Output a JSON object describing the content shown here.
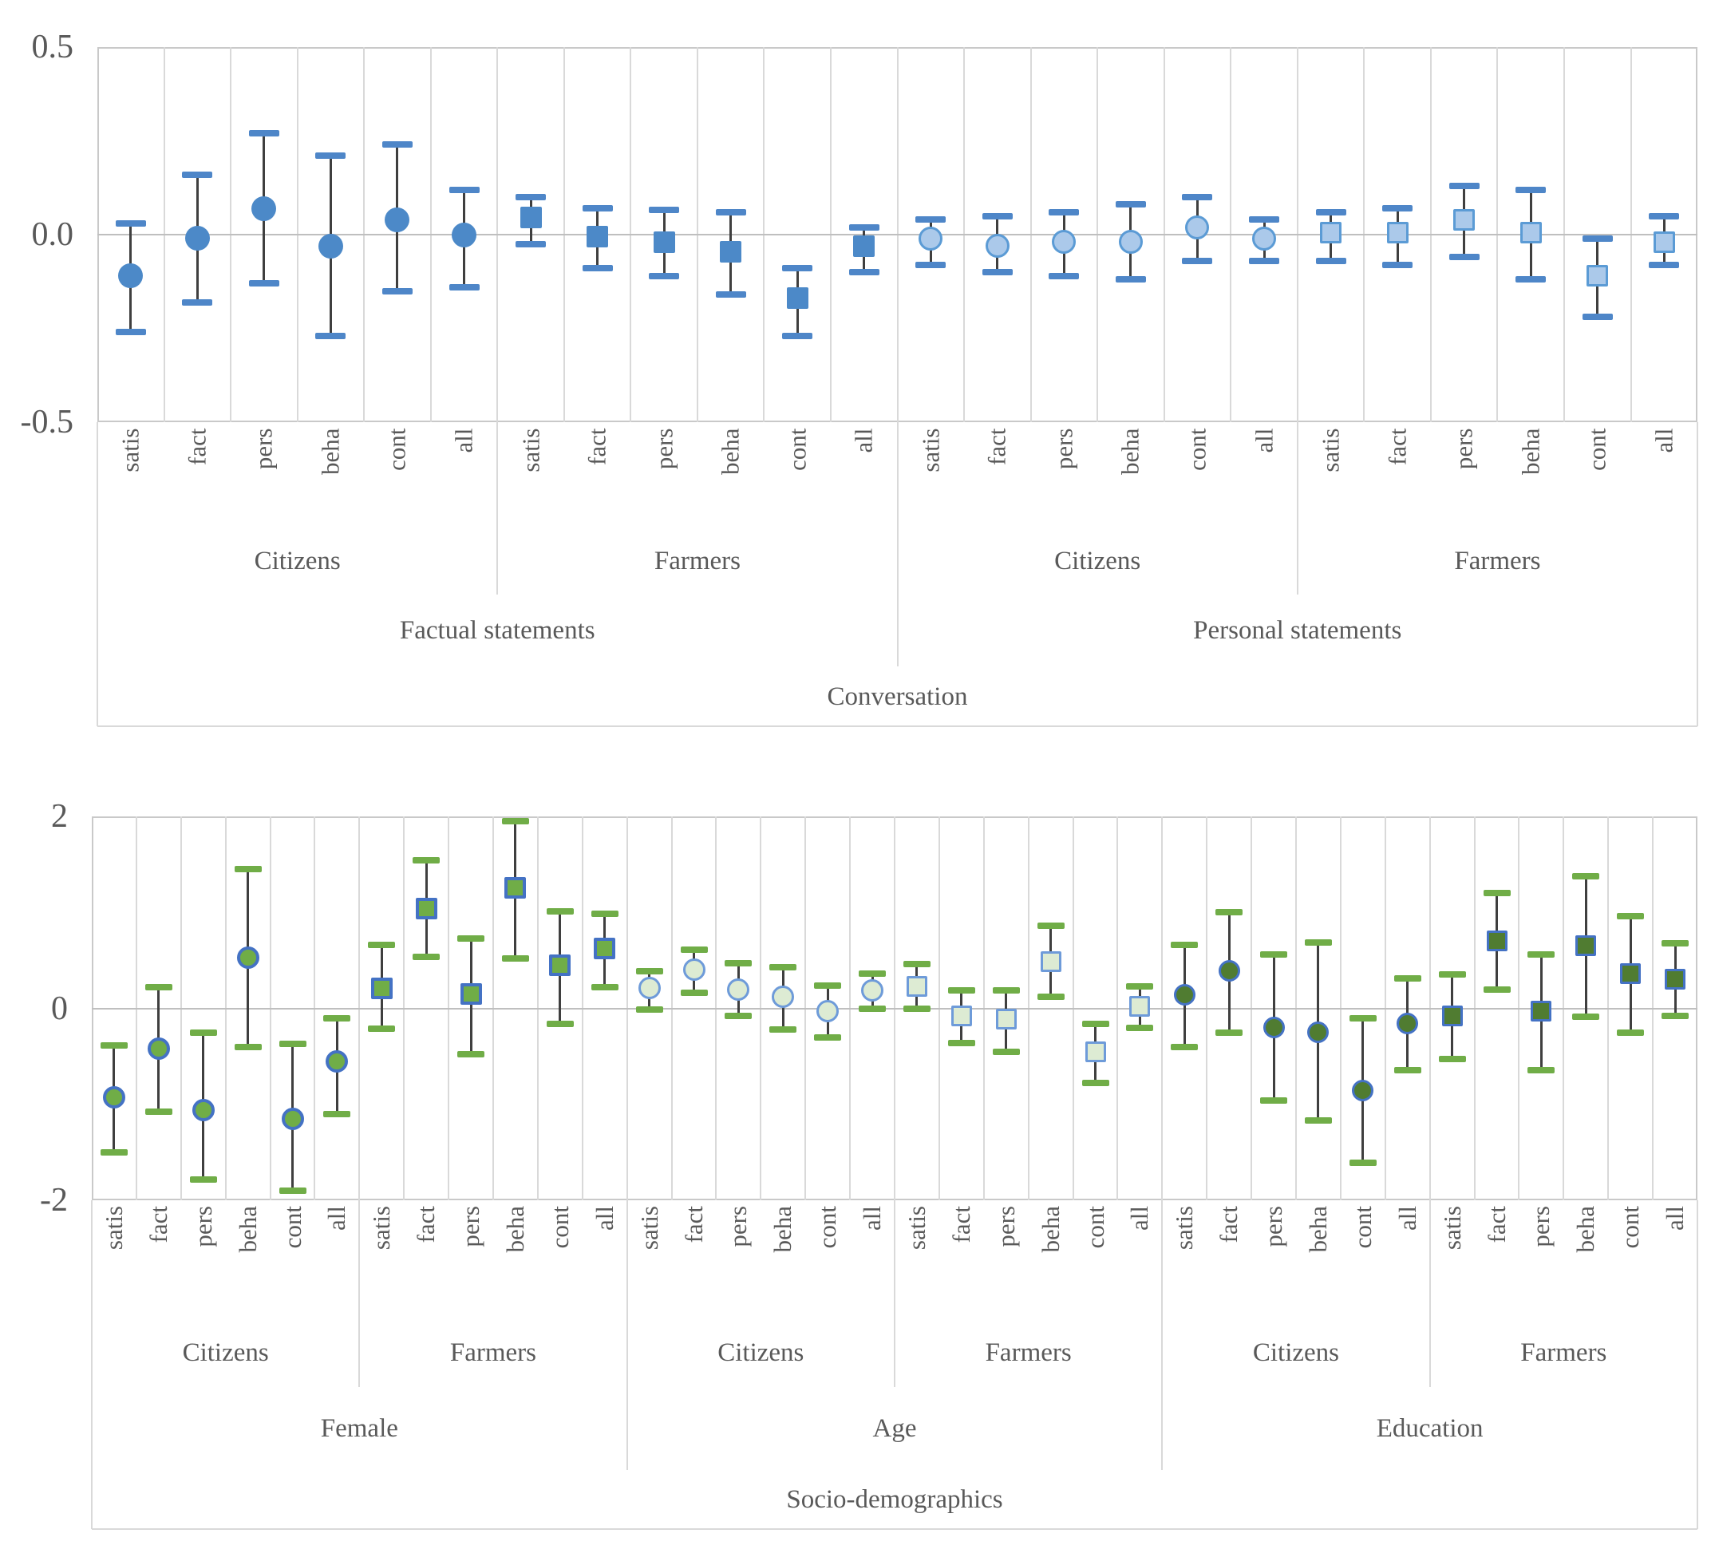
{
  "figure": {
    "background": "#FFFFFF"
  },
  "colors": {
    "text": "#595959",
    "gridline": "#D9D9D9",
    "zero_line": "#BFBFBF",
    "plot_border": "#C9C9C9",
    "error_line": "#3F3F3F"
  },
  "marker_styles": {
    "factual": {
      "fill": "#4C89C8",
      "border": "#4C89C8",
      "cap": "#4E86C8"
    },
    "personal": {
      "fill": "#ABC9EA",
      "border": "#5B9BD5",
      "cap": "#4E86C8"
    },
    "female": {
      "fill": "#70AD47",
      "border": "#4472C4",
      "cap": "#70AD47"
    },
    "age": {
      "fill": "#DDEBD3",
      "border": "#6E9BD9",
      "cap": "#70AD47"
    },
    "education": {
      "fill": "#507C31",
      "border": "#4472C4",
      "cap": "#70AD47"
    }
  },
  "chart_data": [
    {
      "type": "errorbar",
      "name": "conversation",
      "axis_title": "Conversation",
      "grid": true,
      "legend": false,
      "marker_shape_meaning": {
        "circle": "Citizens",
        "square": "Farmers"
      },
      "y_axis": {
        "min": -0.5,
        "max": 0.5,
        "ticks": [
          {
            "label": "0.5",
            "value": 0.5
          },
          {
            "label": "0.0",
            "value": 0.0
          },
          {
            "label": "-0.5",
            "value": -0.5
          }
        ]
      },
      "group_labels_mid": [
        {
          "label": "Citizens",
          "span": 6
        },
        {
          "label": "Farmers",
          "span": 6
        },
        {
          "label": "Citizens",
          "span": 6
        },
        {
          "label": "Farmers",
          "span": 6
        }
      ],
      "group_labels_outer": [
        {
          "label": "Factual statements",
          "span": 12
        },
        {
          "label": "Personal statements",
          "span": 12
        }
      ],
      "points": [
        {
          "c": "satis",
          "m": "circle",
          "s": "factual",
          "v": -0.11,
          "lo": -0.26,
          "hi": 0.03
        },
        {
          "c": "fact",
          "m": "circle",
          "s": "factual",
          "v": -0.01,
          "lo": -0.18,
          "hi": 0.16
        },
        {
          "c": "pers",
          "m": "circle",
          "s": "factual",
          "v": 0.07,
          "lo": -0.13,
          "hi": 0.27
        },
        {
          "c": "beha",
          "m": "circle",
          "s": "factual",
          "v": -0.03,
          "lo": -0.27,
          "hi": 0.21
        },
        {
          "c": "cont",
          "m": "circle",
          "s": "factual",
          "v": 0.04,
          "lo": -0.15,
          "hi": 0.24
        },
        {
          "c": "all",
          "m": "circle",
          "s": "factual",
          "v": 0.0,
          "lo": -0.14,
          "hi": 0.12
        },
        {
          "c": "satis",
          "m": "square",
          "s": "factual",
          "v": 0.045,
          "lo": -0.025,
          "hi": 0.1
        },
        {
          "c": "fact",
          "m": "square",
          "s": "factual",
          "v": -0.005,
          "lo": -0.09,
          "hi": 0.07
        },
        {
          "c": "pers",
          "m": "square",
          "s": "factual",
          "v": -0.02,
          "lo": -0.11,
          "hi": 0.065
        },
        {
          "c": "beha",
          "m": "square",
          "s": "factual",
          "v": -0.045,
          "lo": -0.16,
          "hi": 0.06
        },
        {
          "c": "cont",
          "m": "square",
          "s": "factual",
          "v": -0.17,
          "lo": -0.27,
          "hi": -0.09
        },
        {
          "c": "all",
          "m": "square",
          "s": "factual",
          "v": -0.03,
          "lo": -0.1,
          "hi": 0.02
        },
        {
          "c": "satis",
          "m": "circle",
          "s": "personal",
          "v": -0.01,
          "lo": -0.08,
          "hi": 0.04
        },
        {
          "c": "fact",
          "m": "circle",
          "s": "personal",
          "v": -0.03,
          "lo": -0.1,
          "hi": 0.05
        },
        {
          "c": "pers",
          "m": "circle",
          "s": "personal",
          "v": -0.02,
          "lo": -0.11,
          "hi": 0.06
        },
        {
          "c": "beha",
          "m": "circle",
          "s": "personal",
          "v": -0.02,
          "lo": -0.12,
          "hi": 0.08
        },
        {
          "c": "cont",
          "m": "circle",
          "s": "personal",
          "v": 0.02,
          "lo": -0.07,
          "hi": 0.1
        },
        {
          "c": "all",
          "m": "circle",
          "s": "personal",
          "v": -0.01,
          "lo": -0.07,
          "hi": 0.04
        },
        {
          "c": "satis",
          "m": "square",
          "s": "personal",
          "v": 0.005,
          "lo": -0.07,
          "hi": 0.06
        },
        {
          "c": "fact",
          "m": "square",
          "s": "personal",
          "v": 0.005,
          "lo": -0.08,
          "hi": 0.07
        },
        {
          "c": "pers",
          "m": "square",
          "s": "personal",
          "v": 0.04,
          "lo": -0.06,
          "hi": 0.13
        },
        {
          "c": "beha",
          "m": "square",
          "s": "personal",
          "v": 0.005,
          "lo": -0.12,
          "hi": 0.12
        },
        {
          "c": "cont",
          "m": "square",
          "s": "personal",
          "v": -0.11,
          "lo": -0.22,
          "hi": -0.01
        },
        {
          "c": "all",
          "m": "square",
          "s": "personal",
          "v": -0.02,
          "lo": -0.08,
          "hi": 0.05
        }
      ]
    },
    {
      "type": "errorbar",
      "name": "socio-demographics",
      "axis_title": "Socio-demographics",
      "grid": true,
      "legend": false,
      "marker_shape_meaning": {
        "circle": "Citizens",
        "square": "Farmers"
      },
      "y_axis": {
        "min": -2,
        "max": 2,
        "ticks": [
          {
            "label": "2",
            "value": 2
          },
          {
            "label": "0",
            "value": 0
          },
          {
            "label": "-2",
            "value": -2
          }
        ]
      },
      "group_labels_mid": [
        {
          "label": "Citizens",
          "span": 6
        },
        {
          "label": "Farmers",
          "span": 6
        },
        {
          "label": "Citizens",
          "span": 6
        },
        {
          "label": "Farmers",
          "span": 6
        },
        {
          "label": "Citizens",
          "span": 6
        },
        {
          "label": "Farmers",
          "span": 6
        }
      ],
      "group_labels_outer": [
        {
          "label": "Female",
          "span": 12
        },
        {
          "label": "Age",
          "span": 12
        },
        {
          "label": "Education",
          "span": 12
        }
      ],
      "points": [
        {
          "c": "satis",
          "m": "circle",
          "s": "female",
          "v": -0.93,
          "lo": -1.5,
          "hi": -0.39
        },
        {
          "c": "fact",
          "m": "circle",
          "s": "female",
          "v": -0.42,
          "lo": -1.08,
          "hi": 0.22
        },
        {
          "c": "pers",
          "m": "circle",
          "s": "female",
          "v": -1.06,
          "lo": -1.78,
          "hi": -0.25
        },
        {
          "c": "beha",
          "m": "circle",
          "s": "female",
          "v": 0.53,
          "lo": -0.4,
          "hi": 1.45
        },
        {
          "c": "cont",
          "m": "circle",
          "s": "female",
          "v": -1.15,
          "lo": -1.9,
          "hi": -0.37
        },
        {
          "c": "all",
          "m": "circle",
          "s": "female",
          "v": -0.55,
          "lo": -1.1,
          "hi": -0.1
        },
        {
          "c": "satis",
          "m": "square",
          "s": "female",
          "v": 0.21,
          "lo": -0.21,
          "hi": 0.66
        },
        {
          "c": "fact",
          "m": "square",
          "s": "female",
          "v": 1.04,
          "lo": 0.54,
          "hi": 1.54
        },
        {
          "c": "pers",
          "m": "square",
          "s": "female",
          "v": 0.15,
          "lo": -0.48,
          "hi": 0.73
        },
        {
          "c": "beha",
          "m": "square",
          "s": "female",
          "v": 1.26,
          "lo": 0.52,
          "hi": 1.95
        },
        {
          "c": "cont",
          "m": "square",
          "s": "female",
          "v": 0.45,
          "lo": -0.16,
          "hi": 1.01
        },
        {
          "c": "all",
          "m": "square",
          "s": "female",
          "v": 0.62,
          "lo": 0.22,
          "hi": 0.99
        },
        {
          "c": "satis",
          "m": "circle",
          "s": "age",
          "v": 0.21,
          "lo": -0.01,
          "hi": 0.39
        },
        {
          "c": "fact",
          "m": "circle",
          "s": "age",
          "v": 0.4,
          "lo": 0.16,
          "hi": 0.61
        },
        {
          "c": "pers",
          "m": "circle",
          "s": "age",
          "v": 0.2,
          "lo": -0.08,
          "hi": 0.47
        },
        {
          "c": "beha",
          "m": "circle",
          "s": "age",
          "v": 0.12,
          "lo": -0.22,
          "hi": 0.43
        },
        {
          "c": "cont",
          "m": "circle",
          "s": "age",
          "v": -0.03,
          "lo": -0.3,
          "hi": 0.24
        },
        {
          "c": "all",
          "m": "circle",
          "s": "age",
          "v": 0.19,
          "lo": 0.0,
          "hi": 0.36
        },
        {
          "c": "satis",
          "m": "square",
          "s": "age",
          "v": 0.23,
          "lo": 0.0,
          "hi": 0.46
        },
        {
          "c": "fact",
          "m": "square",
          "s": "age",
          "v": -0.08,
          "lo": -0.36,
          "hi": 0.19
        },
        {
          "c": "pers",
          "m": "square",
          "s": "age",
          "v": -0.11,
          "lo": -0.45,
          "hi": 0.19
        },
        {
          "c": "beha",
          "m": "square",
          "s": "age",
          "v": 0.49,
          "lo": 0.12,
          "hi": 0.86
        },
        {
          "c": "cont",
          "m": "square",
          "s": "age",
          "v": -0.45,
          "lo": -0.78,
          "hi": -0.16
        },
        {
          "c": "all",
          "m": "square",
          "s": "age",
          "v": 0.02,
          "lo": -0.2,
          "hi": 0.23
        },
        {
          "c": "satis",
          "m": "circle",
          "s": "education",
          "v": 0.14,
          "lo": -0.4,
          "hi": 0.66
        },
        {
          "c": "fact",
          "m": "circle",
          "s": "education",
          "v": 0.39,
          "lo": -0.25,
          "hi": 1.0
        },
        {
          "c": "pers",
          "m": "circle",
          "s": "education",
          "v": -0.2,
          "lo": -0.96,
          "hi": 0.56
        },
        {
          "c": "beha",
          "m": "circle",
          "s": "education",
          "v": -0.25,
          "lo": -1.17,
          "hi": 0.69
        },
        {
          "c": "cont",
          "m": "circle",
          "s": "education",
          "v": -0.86,
          "lo": -1.61,
          "hi": -0.1
        },
        {
          "c": "all",
          "m": "circle",
          "s": "education",
          "v": -0.16,
          "lo": -0.64,
          "hi": 0.31
        },
        {
          "c": "satis",
          "m": "square",
          "s": "education",
          "v": -0.08,
          "lo": -0.53,
          "hi": 0.35
        },
        {
          "c": "fact",
          "m": "square",
          "s": "education",
          "v": 0.7,
          "lo": 0.2,
          "hi": 1.2
        },
        {
          "c": "pers",
          "m": "square",
          "s": "education",
          "v": -0.03,
          "lo": -0.64,
          "hi": 0.56
        },
        {
          "c": "beha",
          "m": "square",
          "s": "education",
          "v": 0.65,
          "lo": -0.09,
          "hi": 1.38
        },
        {
          "c": "cont",
          "m": "square",
          "s": "education",
          "v": 0.36,
          "lo": -0.25,
          "hi": 0.96
        },
        {
          "c": "all",
          "m": "square",
          "s": "education",
          "v": 0.3,
          "lo": -0.08,
          "hi": 0.68
        }
      ]
    }
  ]
}
